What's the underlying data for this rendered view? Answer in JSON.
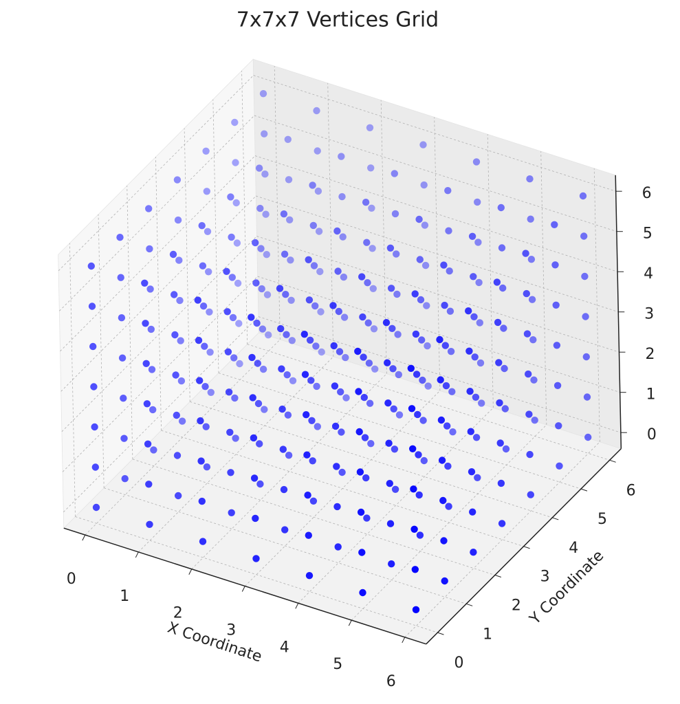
{
  "chart_data": {
    "type": "scatter3d",
    "title": "7x7x7 Vertices Grid",
    "xlabel": "X Coordinate",
    "ylabel": "Y Coordinate",
    "color": "#0000ff",
    "grid": true,
    "xlim": [
      -0.4,
      6.4
    ],
    "ylim": [
      -0.4,
      6.4
    ],
    "zlim": [
      -0.4,
      6.4
    ],
    "xticks": [
      0,
      1,
      2,
      3,
      4,
      5,
      6
    ],
    "yticks": [
      0,
      1,
      2,
      3,
      4,
      5,
      6
    ],
    "zticks": [
      0,
      1,
      2,
      3,
      4,
      5,
      6
    ],
    "x": [
      0,
      0,
      0,
      0,
      0,
      0,
      0,
      0,
      0,
      0,
      0,
      0,
      0,
      0,
      0,
      0,
      0,
      0,
      0,
      0,
      0,
      0,
      0,
      0,
      0,
      0,
      0,
      0,
      0,
      0,
      0,
      0,
      0,
      0,
      0,
      0,
      0,
      0,
      0,
      0,
      0,
      0,
      0,
      0,
      0,
      0,
      0,
      0,
      0,
      1,
      1,
      1,
      1,
      1,
      1,
      1,
      1,
      1,
      1,
      1,
      1,
      1,
      1,
      1,
      1,
      1,
      1,
      1,
      1,
      1,
      1,
      1,
      1,
      1,
      1,
      1,
      1,
      1,
      1,
      1,
      1,
      1,
      1,
      1,
      1,
      1,
      1,
      1,
      1,
      1,
      1,
      1,
      1,
      1,
      1,
      1,
      1,
      1,
      2,
      2,
      2,
      2,
      2,
      2,
      2,
      2,
      2,
      2,
      2,
      2,
      2,
      2,
      2,
      2,
      2,
      2,
      2,
      2,
      2,
      2,
      2,
      2,
      2,
      2,
      2,
      2,
      2,
      2,
      2,
      2,
      2,
      2,
      2,
      2,
      2,
      2,
      2,
      2,
      2,
      2,
      2,
      2,
      2,
      2,
      2,
      2,
      2,
      3,
      3,
      3,
      3,
      3,
      3,
      3,
      3,
      3,
      3,
      3,
      3,
      3,
      3,
      3,
      3,
      3,
      3,
      3,
      3,
      3,
      3,
      3,
      3,
      3,
      3,
      3,
      3,
      3,
      3,
      3,
      3,
      3,
      3,
      3,
      3,
      3,
      3,
      3,
      3,
      3,
      3,
      3,
      3,
      3,
      3,
      3,
      3,
      3,
      4,
      4,
      4,
      4,
      4,
      4,
      4,
      4,
      4,
      4,
      4,
      4,
      4,
      4,
      4,
      4,
      4,
      4,
      4,
      4,
      4,
      4,
      4,
      4,
      4,
      4,
      4,
      4,
      4,
      4,
      4,
      4,
      4,
      4,
      4,
      4,
      4,
      4,
      4,
      4,
      4,
      4,
      4,
      4,
      4,
      4,
      4,
      4,
      4,
      5,
      5,
      5,
      5,
      5,
      5,
      5,
      5,
      5,
      5,
      5,
      5,
      5,
      5,
      5,
      5,
      5,
      5,
      5,
      5,
      5,
      5,
      5,
      5,
      5,
      5,
      5,
      5,
      5,
      5,
      5,
      5,
      5,
      5,
      5,
      5,
      5,
      5,
      5,
      5,
      5,
      5,
      5,
      5,
      5,
      5,
      5,
      5,
      5,
      6,
      6,
      6,
      6,
      6,
      6,
      6,
      6,
      6,
      6,
      6,
      6,
      6,
      6,
      6,
      6,
      6,
      6,
      6,
      6,
      6,
      6,
      6,
      6,
      6,
      6,
      6,
      6,
      6,
      6,
      6,
      6,
      6,
      6,
      6,
      6,
      6,
      6,
      6,
      6,
      6,
      6,
      6,
      6,
      6,
      6,
      6,
      6,
      6
    ],
    "y": [
      0,
      0,
      0,
      0,
      0,
      0,
      0,
      1,
      1,
      1,
      1,
      1,
      1,
      1,
      2,
      2,
      2,
      2,
      2,
      2,
      2,
      3,
      3,
      3,
      3,
      3,
      3,
      3,
      4,
      4,
      4,
      4,
      4,
      4,
      4,
      5,
      5,
      5,
      5,
      5,
      5,
      5,
      6,
      6,
      6,
      6,
      6,
      6,
      6,
      0,
      0,
      0,
      0,
      0,
      0,
      0,
      1,
      1,
      1,
      1,
      1,
      1,
      1,
      2,
      2,
      2,
      2,
      2,
      2,
      2,
      3,
      3,
      3,
      3,
      3,
      3,
      3,
      4,
      4,
      4,
      4,
      4,
      4,
      4,
      5,
      5,
      5,
      5,
      5,
      5,
      5,
      6,
      6,
      6,
      6,
      6,
      6,
      6,
      0,
      0,
      0,
      0,
      0,
      0,
      0,
      1,
      1,
      1,
      1,
      1,
      1,
      1,
      2,
      2,
      2,
      2,
      2,
      2,
      2,
      3,
      3,
      3,
      3,
      3,
      3,
      3,
      4,
      4,
      4,
      4,
      4,
      4,
      4,
      5,
      5,
      5,
      5,
      5,
      5,
      5,
      6,
      6,
      6,
      6,
      6,
      6,
      6,
      0,
      0,
      0,
      0,
      0,
      0,
      0,
      1,
      1,
      1,
      1,
      1,
      1,
      1,
      2,
      2,
      2,
      2,
      2,
      2,
      2,
      3,
      3,
      3,
      3,
      3,
      3,
      3,
      4,
      4,
      4,
      4,
      4,
      4,
      4,
      5,
      5,
      5,
      5,
      5,
      5,
      5,
      6,
      6,
      6,
      6,
      6,
      6,
      6,
      0,
      0,
      0,
      0,
      0,
      0,
      0,
      1,
      1,
      1,
      1,
      1,
      1,
      1,
      2,
      2,
      2,
      2,
      2,
      2,
      2,
      3,
      3,
      3,
      3,
      3,
      3,
      3,
      4,
      4,
      4,
      4,
      4,
      4,
      4,
      5,
      5,
      5,
      5,
      5,
      5,
      5,
      6,
      6,
      6,
      6,
      6,
      6,
      6,
      0,
      0,
      0,
      0,
      0,
      0,
      0,
      1,
      1,
      1,
      1,
      1,
      1,
      1,
      2,
      2,
      2,
      2,
      2,
      2,
      2,
      3,
      3,
      3,
      3,
      3,
      3,
      3,
      4,
      4,
      4,
      4,
      4,
      4,
      4,
      5,
      5,
      5,
      5,
      5,
      5,
      5,
      6,
      6,
      6,
      6,
      6,
      6,
      6,
      0,
      0,
      0,
      0,
      0,
      0,
      0,
      1,
      1,
      1,
      1,
      1,
      1,
      1,
      2,
      2,
      2,
      2,
      2,
      2,
      2,
      3,
      3,
      3,
      3,
      3,
      3,
      3,
      4,
      4,
      4,
      4,
      4,
      4,
      4,
      5,
      5,
      5,
      5,
      5,
      5,
      5,
      6,
      6,
      6,
      6,
      6,
      6,
      6
    ],
    "z": [
      0,
      1,
      2,
      3,
      4,
      5,
      6,
      0,
      1,
      2,
      3,
      4,
      5,
      6,
      0,
      1,
      2,
      3,
      4,
      5,
      6,
      0,
      1,
      2,
      3,
      4,
      5,
      6,
      0,
      1,
      2,
      3,
      4,
      5,
      6,
      0,
      1,
      2,
      3,
      4,
      5,
      6,
      0,
      1,
      2,
      3,
      4,
      5,
      6,
      0,
      1,
      2,
      3,
      4,
      5,
      6,
      0,
      1,
      2,
      3,
      4,
      5,
      6,
      0,
      1,
      2,
      3,
      4,
      5,
      6,
      0,
      1,
      2,
      3,
      4,
      5,
      6,
      0,
      1,
      2,
      3,
      4,
      5,
      6,
      0,
      1,
      2,
      3,
      4,
      5,
      6,
      0,
      1,
      2,
      3,
      4,
      5,
      6,
      0,
      1,
      2,
      3,
      4,
      5,
      6,
      0,
      1,
      2,
      3,
      4,
      5,
      6,
      0,
      1,
      2,
      3,
      4,
      5,
      6,
      0,
      1,
      2,
      3,
      4,
      5,
      6,
      0,
      1,
      2,
      3,
      4,
      5,
      6,
      0,
      1,
      2,
      3,
      4,
      5,
      6,
      0,
      1,
      2,
      3,
      4,
      5,
      6,
      0,
      1,
      2,
      3,
      4,
      5,
      6,
      0,
      1,
      2,
      3,
      4,
      5,
      6,
      0,
      1,
      2,
      3,
      4,
      5,
      6,
      0,
      1,
      2,
      3,
      4,
      5,
      6,
      0,
      1,
      2,
      3,
      4,
      5,
      6,
      0,
      1,
      2,
      3,
      4,
      5,
      6,
      0,
      1,
      2,
      3,
      4,
      5,
      6,
      0,
      1,
      2,
      3,
      4,
      5,
      6,
      0,
      1,
      2,
      3,
      4,
      5,
      6,
      0,
      1,
      2,
      3,
      4,
      5,
      6,
      0,
      1,
      2,
      3,
      4,
      5,
      6,
      0,
      1,
      2,
      3,
      4,
      5,
      6,
      0,
      1,
      2,
      3,
      4,
      5,
      6,
      0,
      1,
      2,
      3,
      4,
      5,
      6,
      0,
      1,
      2,
      3,
      4,
      5,
      6,
      0,
      1,
      2,
      3,
      4,
      5,
      6,
      0,
      1,
      2,
      3,
      4,
      5,
      6,
      0,
      1,
      2,
      3,
      4,
      5,
      6,
      0,
      1,
      2,
      3,
      4,
      5,
      6,
      0,
      1,
      2,
      3,
      4,
      5,
      6,
      0,
      1,
      2,
      3,
      4,
      5,
      6,
      0,
      1,
      2,
      3,
      4,
      5,
      6,
      0,
      1,
      2,
      3,
      4,
      5,
      6,
      0,
      1,
      2,
      3,
      4,
      5,
      6,
      0,
      1,
      2,
      3,
      4,
      5,
      6,
      0,
      1,
      2,
      3,
      4,
      5,
      6,
      0,
      1,
      2,
      3,
      4,
      5,
      6,
      0,
      1,
      2,
      3,
      4,
      5,
      6
    ]
  }
}
